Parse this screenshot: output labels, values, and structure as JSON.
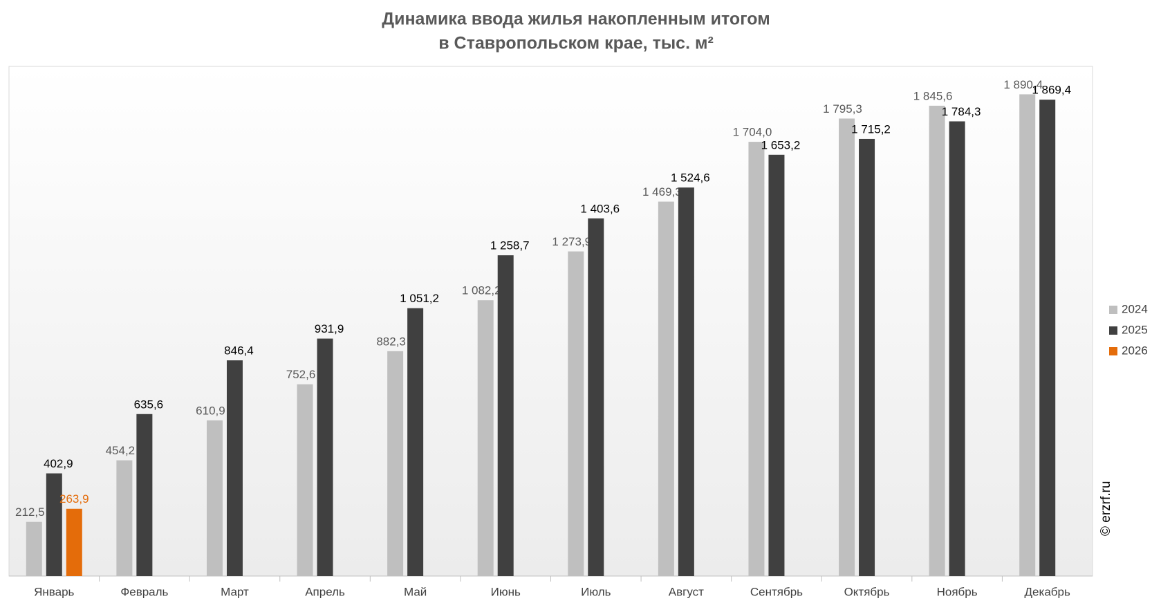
{
  "chart_data": {
    "type": "bar",
    "title": [
      "Динамика ввода жилья накопленным итогом",
      "в Ставропольском крае, тыс. м²"
    ],
    "watermark": "© erzrf.ru",
    "categories": [
      "Январь",
      "Февраль",
      "Март",
      "Апрель",
      "Май",
      "Июнь",
      "Июль",
      "Август",
      "Сентябрь",
      "Октябрь",
      "Ноябрь",
      "Декабрь"
    ],
    "series": [
      {
        "name": "2024",
        "color": "#bfbfbf",
        "label_color": "#595959",
        "values": [
          212.5,
          454.2,
          610.9,
          752.6,
          882.3,
          1082.2,
          1273.9,
          1469.3,
          1704.0,
          1795.3,
          1845.6,
          1890.4
        ],
        "value_labels": [
          "212,5",
          "454,2",
          "610,9",
          "752,6",
          "882,3",
          "1 082,2",
          "1 273,9",
          "1 469,3",
          "1 704,0",
          "1 795,3",
          "1 845,6",
          "1 890,4"
        ]
      },
      {
        "name": "2025",
        "color": "#404040",
        "label_color": "#000000",
        "values": [
          402.9,
          635.6,
          846.4,
          931.9,
          1051.2,
          1258.7,
          1403.6,
          1524.6,
          1653.2,
          1715.2,
          1784.3,
          1869.4
        ],
        "value_labels": [
          "402,9",
          "635,6",
          "846,4",
          "931,9",
          "1 051,2",
          "1 258,7",
          "1 403,6",
          "1 524,6",
          "1 653,2",
          "1 715,2",
          "1 784,3",
          "1 869,4"
        ]
      },
      {
        "name": "2026",
        "color": "#e46c0a",
        "label_color": "#e46c0a",
        "values": [
          263.9,
          null,
          null,
          null,
          null,
          null,
          null,
          null,
          null,
          null,
          null,
          null
        ],
        "value_labels": [
          "263,9",
          null,
          null,
          null,
          null,
          null,
          null,
          null,
          null,
          null,
          null,
          null
        ]
      }
    ],
    "ylim": [
      0,
      2000
    ],
    "legend": "right"
  }
}
